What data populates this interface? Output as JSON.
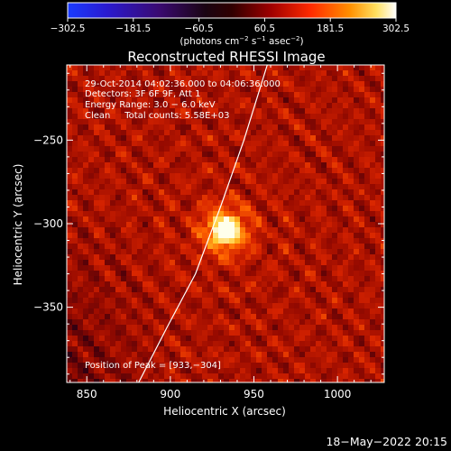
{
  "colorbar": {
    "ticks": [
      "−302.5",
      "−181.5",
      "−60.5",
      "60.5",
      "181.5",
      "302.5"
    ],
    "range": [
      -302.5,
      302.5
    ],
    "units_parts": [
      "(photons cm",
      "−2",
      " s",
      "−1",
      " asec",
      "−2",
      ")"
    ]
  },
  "chart_data": {
    "type": "heatmap",
    "title": "Reconstructed RHESSI Image",
    "xlabel": "Heliocentric X (arcsec)",
    "ylabel": "Heliocentric Y (arcsec)",
    "xlim": [
      838,
      1028
    ],
    "ylim": [
      -395,
      -205
    ],
    "xticks": [
      850,
      900,
      950,
      1000
    ],
    "xtick_labels": [
      "850",
      "900",
      "950",
      "1000"
    ],
    "yticks": [
      -250,
      -300,
      -350
    ],
    "ytick_labels": [
      "−250",
      "−300",
      "−350"
    ],
    "info_lines": [
      "29-Oct-2014 04:02:36.000  to 04:06:36.000",
      "Detectors: 3F 6F 9F, Att 1",
      "Energy Range: 3.0 − 6.0 keV",
      "Clean     Total counts: 5.58E+03"
    ],
    "peak_text": "Position of Peak = [933,−304]",
    "peak": [
      933,
      -304
    ],
    "limb": [
      [
        958,
        -205
      ],
      [
        944,
        -250
      ],
      [
        930,
        -290
      ],
      [
        915,
        -330
      ],
      [
        898,
        -362
      ],
      [
        881,
        -395
      ]
    ],
    "colormap": "red-yellow-white (rainbow-like, dark purple-black to white)"
  },
  "footer": {
    "date": "18−May−2022 20:15"
  }
}
